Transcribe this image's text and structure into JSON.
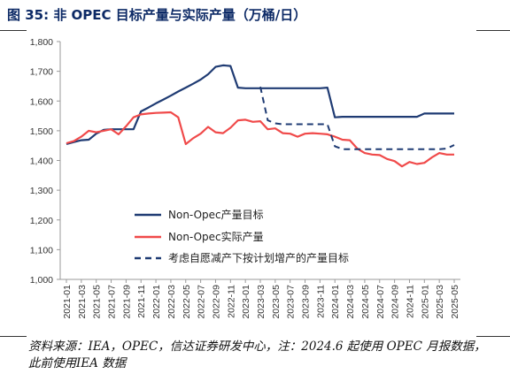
{
  "figure_title": "图 35:  非 OPEC 目标产量与实际产量（万桶/日）",
  "source_note": "资料来源：IEA，OPEC，信达证券研发中心，注：2024.6 起使用 OPEC 月报数据，此前使用IEA 数据",
  "chart_data": {
    "type": "line",
    "title": "",
    "xlabel": "",
    "ylabel": "",
    "ylim": [
      1000,
      1800
    ],
    "yticks": [
      "1,000",
      "1,100",
      "1,200",
      "1,300",
      "1,400",
      "1,500",
      "1,600",
      "1,700",
      "1,800"
    ],
    "xticks": [
      "2021-01",
      "2021-03",
      "2021-05",
      "2021-07",
      "2021-09",
      "2021-11",
      "2022-01",
      "2022-03",
      "2022-05",
      "2022-07",
      "2022-09",
      "2022-11",
      "2023-01",
      "2023-03",
      "2023-05",
      "2023-07",
      "2023-09",
      "2023-11",
      "2024-01",
      "2024-03",
      "2024-05",
      "2024-07",
      "2024-09",
      "2024-11",
      "2025-01",
      "2025-03",
      "2025-05"
    ],
    "grid": false,
    "legend_position": "lower-left",
    "series": [
      {
        "name": "Non-Opec产量目标",
        "color": "#1f3b73",
        "dash": false,
        "points": [
          [
            "2021-01",
            1455
          ],
          [
            "2021-02",
            1462
          ],
          [
            "2021-03",
            1468
          ],
          [
            "2021-04",
            1470
          ],
          [
            "2021-05",
            1490
          ],
          [
            "2021-06",
            1503
          ],
          [
            "2021-07",
            1505
          ],
          [
            "2021-08",
            1505
          ],
          [
            "2021-09",
            1505
          ],
          [
            "2021-10",
            1505
          ],
          [
            "2021-11",
            1565
          ],
          [
            "2021-12",
            1578
          ],
          [
            "2022-01",
            1592
          ],
          [
            "2022-02",
            1605
          ],
          [
            "2022-03",
            1618
          ],
          [
            "2022-04",
            1632
          ],
          [
            "2022-05",
            1645
          ],
          [
            "2022-06",
            1658
          ],
          [
            "2022-07",
            1672
          ],
          [
            "2022-08",
            1690
          ],
          [
            "2022-09",
            1715
          ],
          [
            "2022-10",
            1720
          ],
          [
            "2022-11",
            1718
          ],
          [
            "2022-12",
            1645
          ],
          [
            "2023-01",
            1643
          ],
          [
            "2023-02",
            1643
          ],
          [
            "2023-03",
            1643
          ],
          [
            "2023-04",
            1643
          ],
          [
            "2023-05",
            1643
          ],
          [
            "2023-06",
            1643
          ],
          [
            "2023-07",
            1643
          ],
          [
            "2023-08",
            1643
          ],
          [
            "2023-09",
            1643
          ],
          [
            "2023-10",
            1643
          ],
          [
            "2023-11",
            1643
          ],
          [
            "2023-12",
            1645
          ],
          [
            "2024-01",
            1545
          ],
          [
            "2024-02",
            1547
          ],
          [
            "2024-03",
            1547
          ],
          [
            "2024-04",
            1547
          ],
          [
            "2024-05",
            1547
          ],
          [
            "2024-06",
            1547
          ],
          [
            "2024-07",
            1547
          ],
          [
            "2024-08",
            1547
          ],
          [
            "2024-09",
            1547
          ],
          [
            "2024-10",
            1547
          ],
          [
            "2024-11",
            1547
          ],
          [
            "2024-12",
            1547
          ],
          [
            "2025-01",
            1558
          ],
          [
            "2025-02",
            1558
          ],
          [
            "2025-03",
            1558
          ],
          [
            "2025-04",
            1558
          ],
          [
            "2025-05",
            1558
          ]
        ]
      },
      {
        "name": "Non-Opec实际产量",
        "color": "#f04a4a",
        "dash": false,
        "points": [
          [
            "2021-01",
            1458
          ],
          [
            "2021-02",
            1465
          ],
          [
            "2021-03",
            1480
          ],
          [
            "2021-04",
            1500
          ],
          [
            "2021-05",
            1495
          ],
          [
            "2021-06",
            1500
          ],
          [
            "2021-07",
            1505
          ],
          [
            "2021-08",
            1488
          ],
          [
            "2021-09",
            1515
          ],
          [
            "2021-10",
            1545
          ],
          [
            "2021-11",
            1555
          ],
          [
            "2021-12",
            1558
          ],
          [
            "2022-01",
            1560
          ],
          [
            "2022-02",
            1561
          ],
          [
            "2022-03",
            1562
          ],
          [
            "2022-04",
            1545
          ],
          [
            "2022-05",
            1455
          ],
          [
            "2022-06",
            1475
          ],
          [
            "2022-07",
            1490
          ],
          [
            "2022-08",
            1513
          ],
          [
            "2022-09",
            1495
          ],
          [
            "2022-10",
            1492
          ],
          [
            "2022-11",
            1510
          ],
          [
            "2022-12",
            1535
          ],
          [
            "2023-01",
            1537
          ],
          [
            "2023-02",
            1530
          ],
          [
            "2023-03",
            1532
          ],
          [
            "2023-04",
            1505
          ],
          [
            "2023-05",
            1508
          ],
          [
            "2023-06",
            1492
          ],
          [
            "2023-07",
            1490
          ],
          [
            "2023-08",
            1480
          ],
          [
            "2023-09",
            1490
          ],
          [
            "2023-10",
            1492
          ],
          [
            "2023-11",
            1490
          ],
          [
            "2023-12",
            1488
          ],
          [
            "2024-01",
            1480
          ],
          [
            "2024-02",
            1470
          ],
          [
            "2024-03",
            1468
          ],
          [
            "2024-04",
            1440
          ],
          [
            "2024-05",
            1425
          ],
          [
            "2024-06",
            1420
          ],
          [
            "2024-07",
            1418
          ],
          [
            "2024-08",
            1405
          ],
          [
            "2024-09",
            1398
          ],
          [
            "2024-10",
            1380
          ],
          [
            "2024-11",
            1395
          ],
          [
            "2024-12",
            1388
          ],
          [
            "2025-01",
            1392
          ],
          [
            "2025-02",
            1410
          ],
          [
            "2025-03",
            1425
          ],
          [
            "2025-04",
            1420
          ],
          [
            "2025-05",
            1420
          ]
        ]
      },
      {
        "name": "考虑自愿减产下按计划增产的产量目标",
        "color": "#1f3b73",
        "dash": true,
        "points": [
          [
            "2023-03",
            1648
          ],
          [
            "2023-04",
            1535
          ],
          [
            "2023-05",
            1525
          ],
          [
            "2023-06",
            1522
          ],
          [
            "2023-07",
            1522
          ],
          [
            "2023-08",
            1522
          ],
          [
            "2023-09",
            1522
          ],
          [
            "2023-10",
            1522
          ],
          [
            "2023-11",
            1522
          ],
          [
            "2023-12",
            1522
          ],
          [
            "2024-01",
            1448
          ],
          [
            "2024-02",
            1438
          ],
          [
            "2024-03",
            1438
          ],
          [
            "2024-04",
            1438
          ],
          [
            "2024-05",
            1438
          ],
          [
            "2024-06",
            1438
          ],
          [
            "2024-07",
            1438
          ],
          [
            "2024-08",
            1438
          ],
          [
            "2024-09",
            1438
          ],
          [
            "2024-10",
            1438
          ],
          [
            "2024-11",
            1438
          ],
          [
            "2024-12",
            1438
          ],
          [
            "2025-01",
            1438
          ],
          [
            "2025-02",
            1438
          ],
          [
            "2025-03",
            1438
          ],
          [
            "2025-04",
            1440
          ],
          [
            "2025-05",
            1452
          ]
        ]
      }
    ]
  }
}
